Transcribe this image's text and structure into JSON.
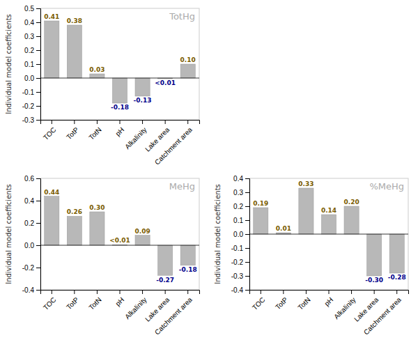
{
  "chart_data": [
    {
      "type": "bar",
      "title": "TotHg",
      "categories": [
        "TOC",
        "TotP",
        "TotN",
        "pH",
        "Alkalinity",
        "Lake area",
        "Catchment area"
      ],
      "values": [
        0.41,
        0.38,
        0.03,
        -0.18,
        -0.13,
        -0.005,
        0.1
      ],
      "value_labels": [
        "0.41",
        "0.38",
        "0.03",
        "-0.18",
        "-0.13",
        "<0.01",
        "0.10"
      ],
      "color": "#b8b8b8",
      "y_label": "Individual model coefficients",
      "ylim": [
        -0.3,
        0.5
      ],
      "yticks": [
        -0.3,
        -0.2,
        -0.1,
        {
          "value": 0.0,
          "label": "0.0"
        },
        0.1,
        0.2,
        0.3,
        0.4,
        0.5
      ],
      "data_labels": true,
      "grid": false
    },
    {
      "type": "bar",
      "title": "MeHg",
      "categories": [
        "TOC",
        "TotP",
        "TotN",
        "pH",
        "Alkalinity",
        "Lake area",
        "Catchment area"
      ],
      "values": [
        0.44,
        0.26,
        0.3,
        0.005,
        0.09,
        -0.27,
        -0.18
      ],
      "value_labels": [
        "0.44",
        "0.26",
        "0.30",
        "<0.01",
        "0.09",
        "-0.27",
        "-0.18"
      ],
      "color": "#b8b8b8",
      "y_label": "Individual model coefficients",
      "ylim": [
        -0.4,
        0.6
      ],
      "yticks": [
        -0.4,
        -0.2,
        {
          "value": 0.0,
          "label": "0.0"
        },
        0.2,
        0.4,
        0.6
      ],
      "data_labels": true,
      "grid": false
    },
    {
      "type": "bar",
      "title": "%MeHg",
      "categories": [
        "TOC",
        "TotP",
        "TotN",
        "pH",
        "Alkalinity",
        "Lake area",
        "Catchment area"
      ],
      "values": [
        0.19,
        0.01,
        0.33,
        0.14,
        0.2,
        -0.3,
        -0.28
      ],
      "value_labels": [
        "0.19",
        "0.01",
        "0.33",
        "0.14",
        "0.20",
        "-0.30",
        "-0.28"
      ],
      "color": "#b8b8b8",
      "y_label": "Individual model coefficients",
      "ylim": [
        -0.4,
        0.4
      ],
      "yticks": [
        -0.4,
        -0.3,
        -0.2,
        -0.1,
        {
          "value": 0.0,
          "label": "0.0"
        },
        0.1,
        0.2,
        0.3,
        0.4
      ],
      "data_labels": true,
      "grid": false
    }
  ]
}
